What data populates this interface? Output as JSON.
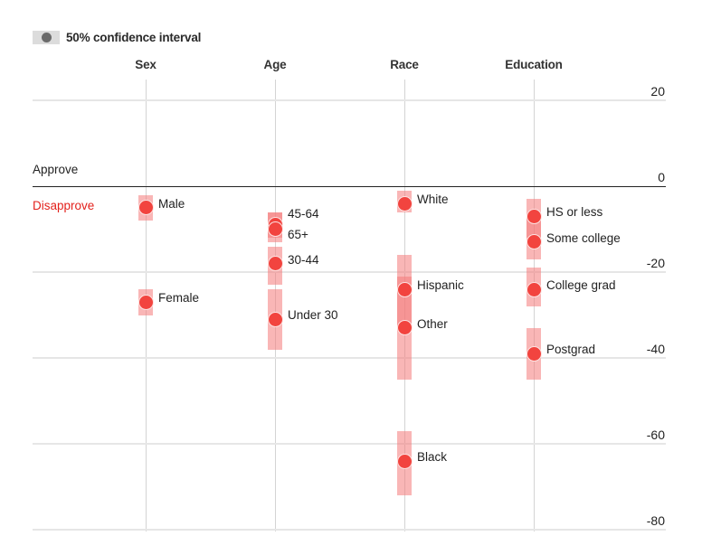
{
  "legend": {
    "label": "50% confidence interval",
    "swatch_color": "#dcdcdc",
    "dot_color": "#6b6b6b"
  },
  "labels": {
    "approve": "Approve",
    "disapprove": "Disapprove",
    "disapprove_color": "#e3211c"
  },
  "colors": {
    "dot": "#f2443f",
    "band": "#f47a7a",
    "grid": "#e6e6e6",
    "zero_line": "#222222"
  },
  "chart_data": {
    "type": "dot-range",
    "title": "",
    "legend": [
      "50% confidence interval"
    ],
    "ylabel": "",
    "ylim": [
      -80,
      20
    ],
    "yticks": [
      20,
      0,
      -20,
      -40,
      -60,
      -80
    ],
    "grid": true,
    "above_zero_label": "Approve",
    "below_zero_label": "Disapprove",
    "categories": [
      "Sex",
      "Age",
      "Race",
      "Education"
    ],
    "groups": [
      {
        "category": "Sex",
        "points": [
          {
            "label": "Male",
            "value": -5,
            "ci_low": -8,
            "ci_high": -2
          },
          {
            "label": "Female",
            "value": -27,
            "ci_low": -30,
            "ci_high": -24
          }
        ]
      },
      {
        "category": "Age",
        "points": [
          {
            "label": "45-64",
            "value": -9,
            "ci_low": -12,
            "ci_high": -6
          },
          {
            "label": "65+",
            "value": -10,
            "ci_low": -13,
            "ci_high": -6
          },
          {
            "label": "30-44",
            "value": -18,
            "ci_low": -23,
            "ci_high": -14
          },
          {
            "label": "Under 30",
            "value": -31,
            "ci_low": -38,
            "ci_high": -24
          }
        ]
      },
      {
        "category": "Race",
        "points": [
          {
            "label": "White",
            "value": -4,
            "ci_low": -6,
            "ci_high": -1
          },
          {
            "label": "Hispanic",
            "value": -24,
            "ci_low": -33,
            "ci_high": -16
          },
          {
            "label": "Other",
            "value": -33,
            "ci_low": -45,
            "ci_high": -21
          },
          {
            "label": "Black",
            "value": -64,
            "ci_low": -72,
            "ci_high": -57
          }
        ]
      },
      {
        "category": "Education",
        "points": [
          {
            "label": "HS or less",
            "value": -7,
            "ci_low": -12,
            "ci_high": -3
          },
          {
            "label": "Some college",
            "value": -13,
            "ci_low": -17,
            "ci_high": -7
          },
          {
            "label": "College grad",
            "value": -24,
            "ci_low": -28,
            "ci_high": -19
          },
          {
            "label": "Postgrad",
            "value": -39,
            "ci_low": -45,
            "ci_high": -33
          }
        ]
      }
    ]
  }
}
